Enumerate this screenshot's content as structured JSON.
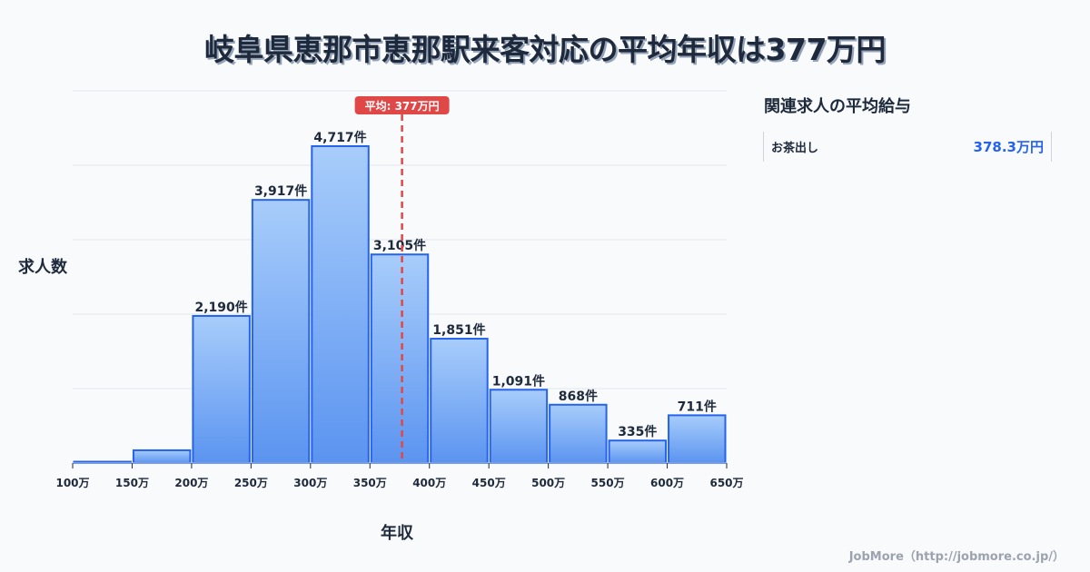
{
  "title": "岐阜県恵那市恵那駅来客対応の平均年収は377万円",
  "y_axis_label": "求人数",
  "x_axis_label": "年収",
  "average_badge": "平均: 377万円",
  "related_panel": {
    "title": "関連求人の平均給与",
    "items": [
      {
        "name": "お茶出し",
        "value": "378.3万円"
      }
    ]
  },
  "footer": "JobMore（http://jobmore.co.jp/）",
  "colors": {
    "bar_fill_top": "#a8cdfb",
    "bar_fill_bottom": "#5b94f0",
    "bar_stroke": "#2563eb",
    "average_line": "#e04848",
    "grid": "#e2e8f0",
    "accent_value": "#2563eb"
  },
  "chart_data": {
    "type": "bar",
    "title": "岐阜県恵那市恵那駅来客対応の平均年収は377万円",
    "xlabel": "年収",
    "ylabel": "求人数",
    "x_tick_labels": [
      "100万",
      "150万",
      "200万",
      "250万",
      "300万",
      "350万",
      "400万",
      "450万",
      "500万",
      "550万",
      "600万",
      "650万"
    ],
    "categories": [
      "100-150万",
      "150-200万",
      "200-250万",
      "250-300万",
      "300-350万",
      "350-400万",
      "400-450万",
      "450-500万",
      "500-550万",
      "550-600万",
      "600-650万"
    ],
    "values": [
      20,
      190,
      2190,
      3917,
      4717,
      3105,
      1851,
      1091,
      868,
      335,
      711
    ],
    "value_labels": [
      "",
      "",
      "2,190件",
      "3,917件",
      "4,717件",
      "3,105件",
      "1,851件",
      "1,091件",
      "868件",
      "335件",
      "711件"
    ],
    "average": 377,
    "average_label": "平均: 377万円",
    "x_range": [
      100,
      650
    ],
    "ylim": [
      0,
      5541
    ],
    "grid": true,
    "legend": null
  }
}
